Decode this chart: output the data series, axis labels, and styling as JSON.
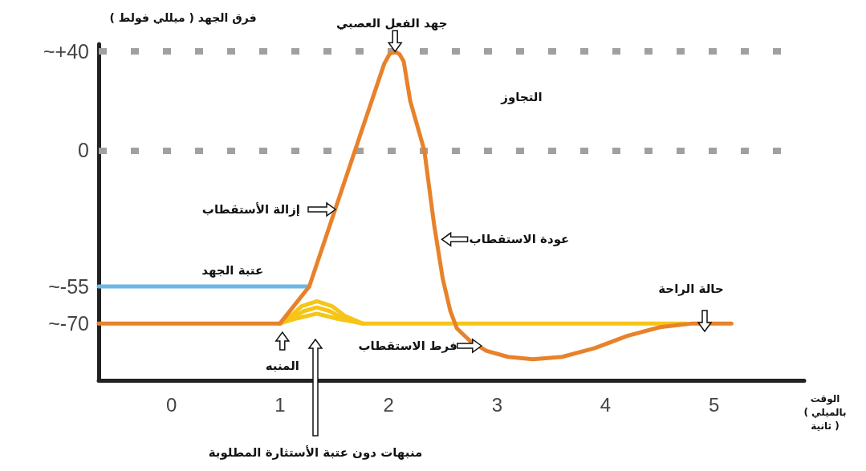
{
  "chart_data": {
    "type": "line",
    "xlabel": "الوقت\n( بالميلي\nثانية )",
    "ylabel": "فرق الجهد ( ميللي فولط )",
    "xlim": [
      -0.67,
      5.83
    ],
    "ylim": [
      -93,
      43
    ],
    "xticks": [
      0,
      1,
      2,
      3,
      4,
      5
    ],
    "yticks": [
      {
        "value": 40,
        "label": "~+40"
      },
      0,
      {
        "value": -55,
        "label": "~-55"
      },
      {
        "value": -70,
        "label": "~-70"
      }
    ],
    "grid": false,
    "marker": "none",
    "line_style": "solid",
    "series": [
      {
        "color": "#f5c518",
        "x": [
          1.0,
          1.1,
          1.2,
          1.34,
          1.48,
          1.6,
          1.76,
          4.74
        ],
        "values": [
          -70,
          -67,
          -63,
          -61,
          -63,
          -67,
          -70,
          -70
        ]
      },
      {
        "color": "#f5c518",
        "x": [
          1.0,
          1.12,
          1.22,
          1.34,
          1.46,
          1.58,
          1.76
        ],
        "values": [
          -70,
          -67.5,
          -65,
          -63.5,
          -65,
          -68,
          -70
        ]
      },
      {
        "color": "#f5c518",
        "x": [
          1.0,
          1.15,
          1.34,
          1.52,
          1.76
        ],
        "values": [
          -70,
          -68,
          -66,
          -68,
          -70
        ]
      },
      {
        "color": "#6cb8e6",
        "x": [
          -0.67,
          1.27
        ],
        "values": [
          -55,
          -55
        ]
      },
      {
        "color": "#e8822a",
        "x": [
          -0.67,
          1.0,
          1.27,
          1.96,
          2.01,
          2.06,
          2.1,
          2.14,
          2.2,
          2.33,
          2.42,
          2.5,
          2.57,
          2.63,
          2.75,
          2.9,
          3.1,
          3.33,
          3.6,
          3.9,
          4.2,
          4.5,
          4.8,
          5.16
        ],
        "values": [
          -70,
          -70,
          -55,
          35,
          39,
          40,
          39,
          36,
          20,
          0,
          -30,
          -52,
          -65,
          -72,
          -77,
          -81,
          -83.5,
          -84.5,
          -83.5,
          -80,
          -75,
          -71.5,
          -70,
          -70
        ]
      }
    ],
    "ref_lines": [
      {
        "axis": "y",
        "value": 40,
        "color": "#a0a0a0",
        "line_style": "dotted"
      },
      {
        "axis": "y",
        "value": 0,
        "color": "#a0a0a0",
        "line_style": "dotted"
      }
    ],
    "annotations": [
      {
        "text": "جهد الفعل العصبي",
        "x": 2.06,
        "y": 40
      },
      "التجاوز",
      "إزالة الأستقطاب",
      {
        "text": "عودة الاستقطاب",
        "x": 2.44,
        "y": -35
      },
      {
        "text": "عتبة الجهد",
        "x": 0.6,
        "y": -55
      },
      "حالة الراحة",
      {
        "text": "فرط الاستقطاب",
        "x": 2.9,
        "y": -81
      },
      {
        "text": "المنبه",
        "x": 1.0,
        "y": -70
      },
      "منبهات دون عتبة الأستثارة المطلوبة"
    ]
  }
}
